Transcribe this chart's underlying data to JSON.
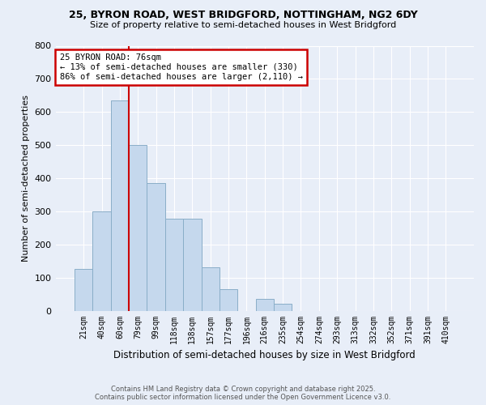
{
  "title1": "25, BYRON ROAD, WEST BRIDGFORD, NOTTINGHAM, NG2 6DY",
  "title2": "Size of property relative to semi-detached houses in West Bridgford",
  "xlabel": "Distribution of semi-detached houses by size in West Bridgford",
  "ylabel": "Number of semi-detached properties",
  "bar_labels": [
    "21sqm",
    "40sqm",
    "60sqm",
    "79sqm",
    "99sqm",
    "118sqm",
    "138sqm",
    "157sqm",
    "177sqm",
    "196sqm",
    "216sqm",
    "235sqm",
    "254sqm",
    "274sqm",
    "293sqm",
    "313sqm",
    "332sqm",
    "352sqm",
    "371sqm",
    "391sqm",
    "410sqm"
  ],
  "bar_values": [
    125,
    300,
    635,
    500,
    385,
    277,
    277,
    130,
    65,
    0,
    35,
    20,
    0,
    0,
    0,
    0,
    0,
    0,
    0,
    0,
    0
  ],
  "bar_color": "#c5d8ed",
  "bar_edge_color": "#8aaec8",
  "vline_color": "#cc0000",
  "annotation_title": "25 BYRON ROAD: 76sqm",
  "annotation_line1": "← 13% of semi-detached houses are smaller (330)",
  "annotation_line2": "86% of semi-detached houses are larger (2,110) →",
  "annotation_box_color": "#cc0000",
  "ylim": [
    0,
    800
  ],
  "yticks": [
    0,
    100,
    200,
    300,
    400,
    500,
    600,
    700,
    800
  ],
  "footer1": "Contains HM Land Registry data © Crown copyright and database right 2025.",
  "footer2": "Contains public sector information licensed under the Open Government Licence v3.0.",
  "bg_color": "#e8eef8",
  "plot_bg_color": "#e8eef8",
  "vline_pos": 2.5
}
